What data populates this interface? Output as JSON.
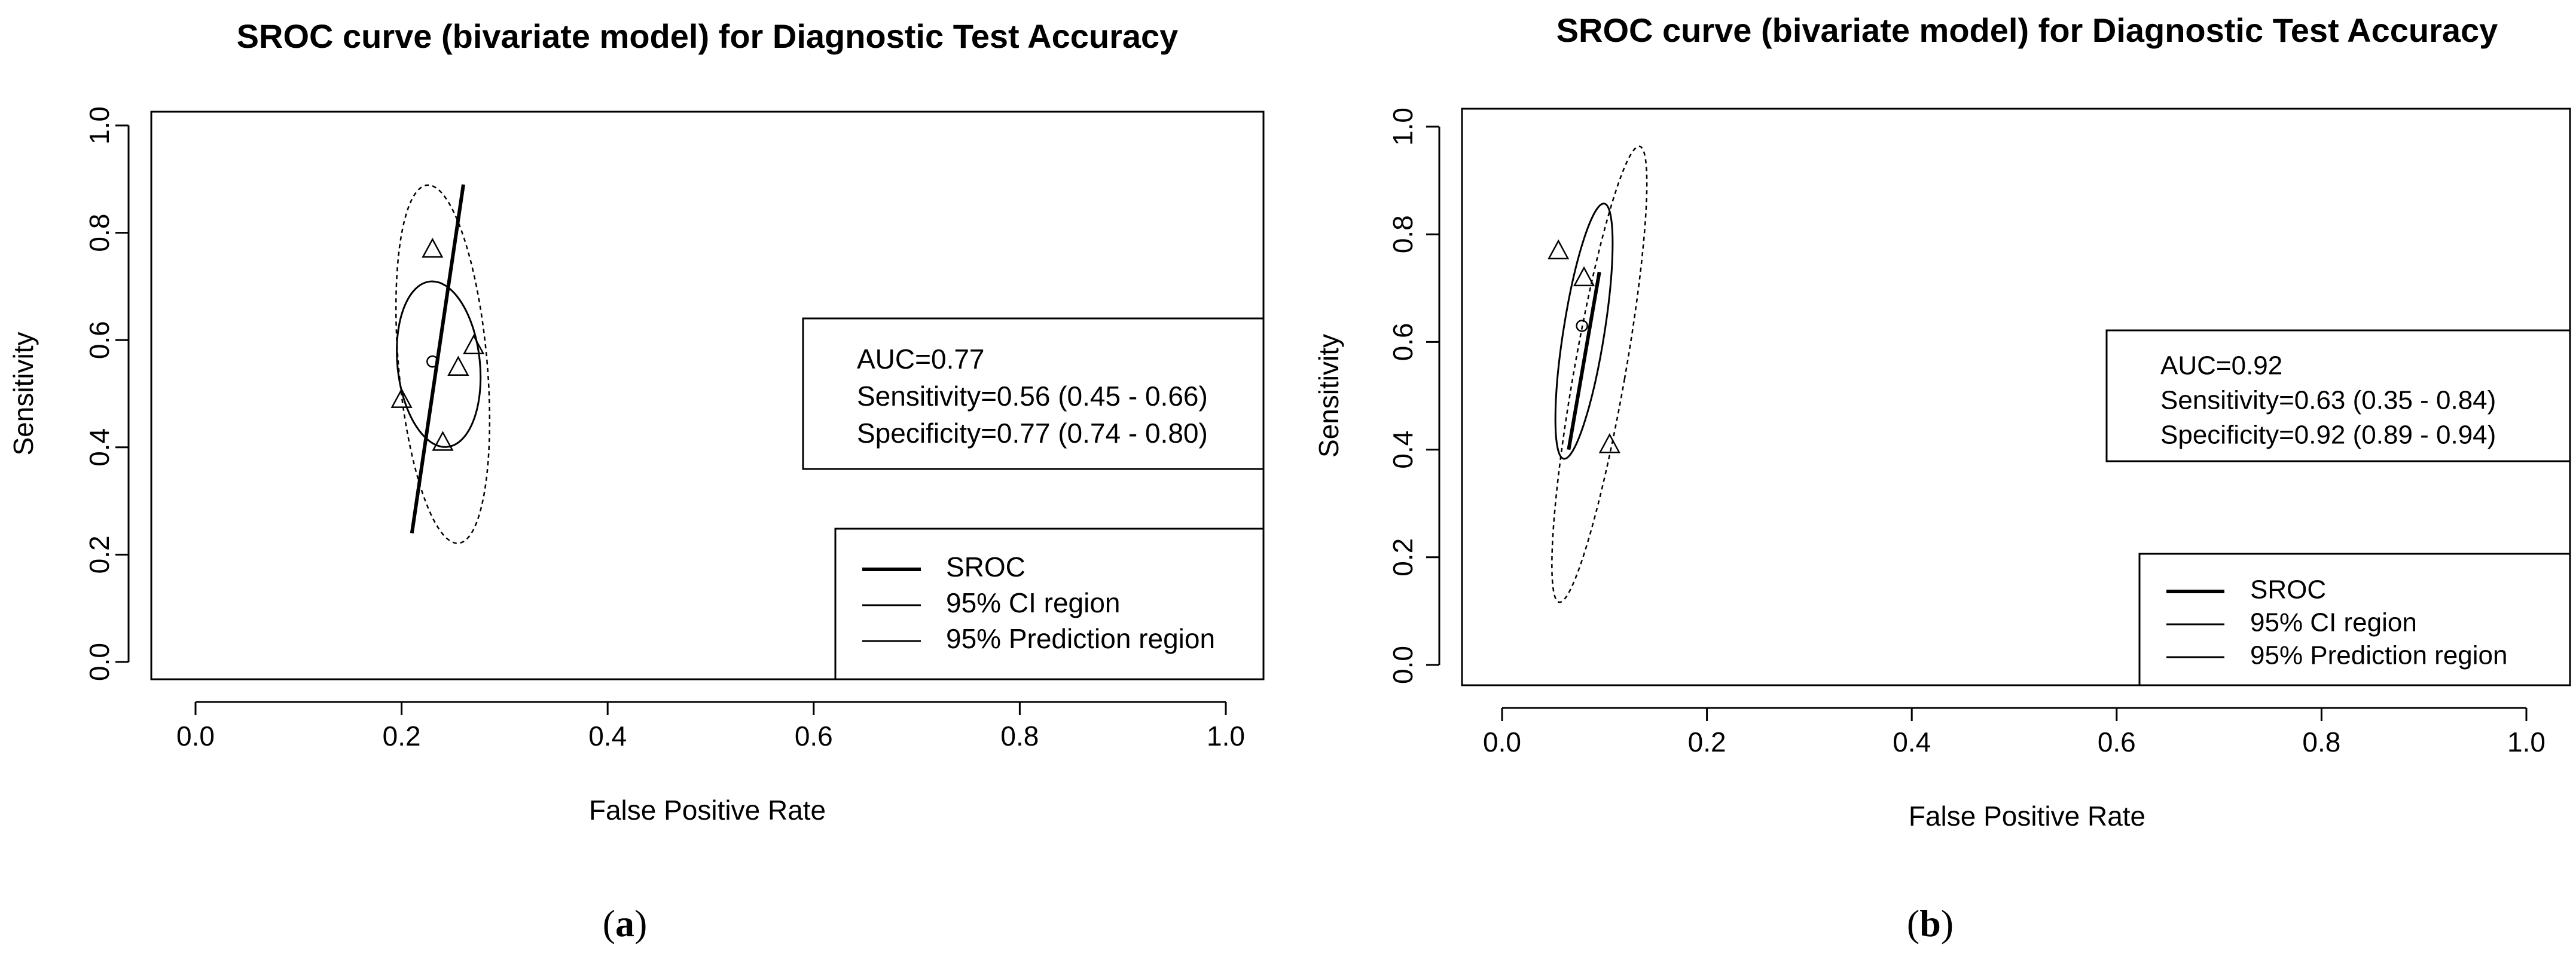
{
  "chart_data": [
    {
      "type": "scatter",
      "title": "SROC curve (bivariate model) for Diagnostic Test Accuracy",
      "xlabel": "False Positive Rate",
      "ylabel": "Sensitivity",
      "xlim": [
        0,
        1
      ],
      "ylim": [
        0,
        1
      ],
      "xticks": [
        "0.0",
        "0.2",
        "0.4",
        "0.6",
        "0.8",
        "1.0"
      ],
      "yticks": [
        "0.0",
        "0.2",
        "0.4",
        "0.6",
        "0.8",
        "1.0"
      ],
      "caption_letter": "a",
      "studies": {
        "fpr": [
          0.2,
          0.23,
          0.24,
          0.255,
          0.27
        ],
        "sens": [
          0.49,
          0.77,
          0.41,
          0.55,
          0.59
        ]
      },
      "summary_point": {
        "fpr": 0.23,
        "sens": 0.56
      },
      "sroc_line": {
        "fpr": [
          0.21,
          0.26
        ],
        "sens": [
          0.24,
          0.89
        ]
      },
      "ci_region": {
        "center_fpr": 0.236,
        "center_sens": 0.555,
        "fpr_half_width": 0.04,
        "sens_half_height": 0.155,
        "tilt_deg": -6
      },
      "prediction_region": {
        "center_fpr": 0.24,
        "center_sens": 0.555,
        "fpr_half_width": 0.043,
        "sens_half_height": 0.335,
        "tilt_deg": -5
      },
      "info_box": {
        "lines": [
          "AUC=0.77",
          "Sensitivity=0.56 (0.45 - 0.66)",
          "Specificity=0.77 (0.74 - 0.80)"
        ]
      },
      "legend": {
        "position": "bottom-right",
        "entries": [
          "SROC",
          "95% CI region",
          "95% Prediction region"
        ]
      }
    },
    {
      "type": "scatter",
      "title": "SROC curve (bivariate model) for Diagnostic Test Accuracy",
      "xlabel": "False Positive Rate",
      "ylabel": "Sensitivity",
      "xlim": [
        0,
        1
      ],
      "ylim": [
        0,
        1
      ],
      "xticks": [
        "0.0",
        "0.2",
        "0.4",
        "0.6",
        "0.8",
        "1.0"
      ],
      "yticks": [
        "0.0",
        "0.2",
        "0.4",
        "0.6",
        "0.8",
        "1.0"
      ],
      "caption_letter": "b",
      "studies": {
        "fpr": [
          0.055,
          0.08,
          0.105
        ],
        "sens": [
          0.77,
          0.72,
          0.41
        ]
      },
      "summary_point": {
        "fpr": 0.078,
        "sens": 0.63
      },
      "sroc_line": {
        "fpr": [
          0.065,
          0.095
        ],
        "sens": [
          0.4,
          0.73
        ]
      },
      "ci_region": {
        "center_fpr": 0.08,
        "center_sens": 0.62,
        "fpr_half_width": 0.02,
        "sens_half_height": 0.24,
        "tilt_deg": 9
      },
      "prediction_region": {
        "center_fpr": 0.095,
        "center_sens": 0.54,
        "fpr_half_width": 0.025,
        "sens_half_height": 0.43,
        "tilt_deg": 10
      },
      "info_box": {
        "lines": [
          "AUC=0.92",
          "Sensitivity=0.63 (0.35 - 0.84)",
          "Specificity=0.92 (0.89 - 0.94)"
        ]
      },
      "legend": {
        "position": "bottom-right",
        "entries": [
          "SROC",
          "95% CI region",
          "95% Prediction region"
        ]
      }
    }
  ]
}
